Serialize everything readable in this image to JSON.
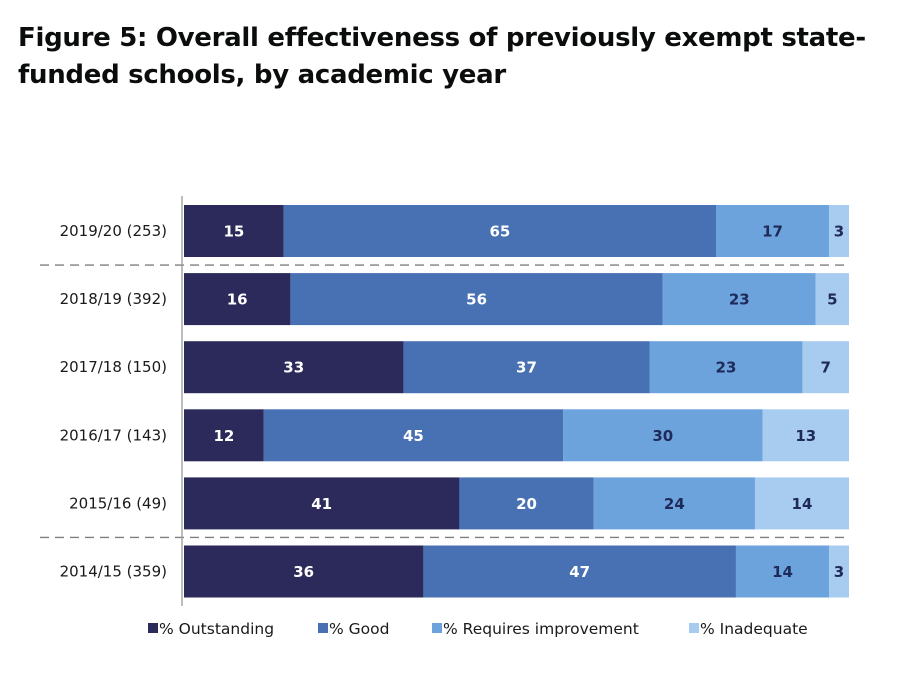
{
  "title": "Figure 5: Overall effectiveness of previously exempt state-funded schools, by academic year",
  "chart_data": {
    "type": "bar",
    "orientation": "horizontal",
    "stacked": "100%",
    "categories": [
      "2019/20 (253)",
      "2018/19 (392)",
      "2017/18 (150)",
      "2016/17 (143)",
      "2015/16 (49)",
      "2014/15 (359)"
    ],
    "series": [
      {
        "name": "% Outstanding",
        "color": "#2b2a5a",
        "label_color": "#ffffff",
        "values": [
          15,
          16,
          33,
          12,
          41,
          36
        ]
      },
      {
        "name": "% Good",
        "color": "#4771b3",
        "label_color": "#ffffff",
        "values": [
          65,
          56,
          37,
          45,
          20,
          47
        ]
      },
      {
        "name": "% Requires improvement",
        "color": "#6da3dc",
        "label_color": "#1f2a5a",
        "values": [
          17,
          23,
          23,
          30,
          24,
          14
        ]
      },
      {
        "name": "% Inadequate",
        "color": "#a7ccf0",
        "label_color": "#1f2a5a",
        "values": [
          3,
          5,
          7,
          13,
          14,
          3
        ]
      }
    ],
    "separators_after": [
      "2019/20 (253)",
      "2015/16 (49)"
    ],
    "xlim": [
      0,
      100
    ],
    "grid": false,
    "legend": "bottom"
  }
}
